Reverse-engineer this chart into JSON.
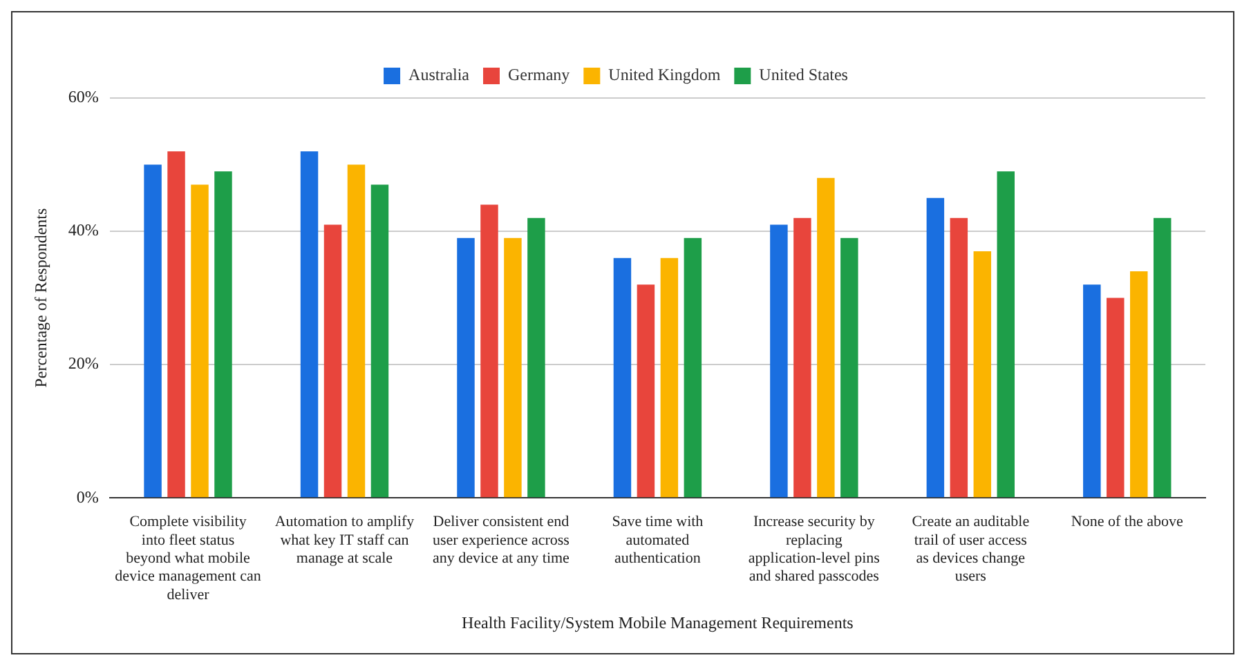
{
  "chart_data": {
    "type": "bar",
    "xlabel": "Health Facility/System Mobile Management Requirements",
    "ylabel": "Percentage of Respondents",
    "categories": [
      "Complete visibility into fleet status beyond what mobile device management can deliver",
      "Automation to amplify what key IT staff can manage at scale",
      "Deliver consistent end user experience across any device at any time",
      "Save time with automated authentication",
      "Increase security by replacing application-level pins and shared passcodes",
      "Create an auditable trail of user access as devices change users",
      "None of the above"
    ],
    "series": [
      {
        "name": "Australia",
        "color": "#1a6fe0",
        "values": [
          50,
          52,
          39,
          36,
          41,
          45,
          32
        ]
      },
      {
        "name": "Germany",
        "color": "#e8453c",
        "values": [
          52,
          41,
          44,
          32,
          42,
          42,
          30
        ]
      },
      {
        "name": "United Kingdom",
        "color": "#fbb400",
        "values": [
          47,
          50,
          39,
          36,
          48,
          37,
          34
        ]
      },
      {
        "name": "United States",
        "color": "#1e9e49",
        "values": [
          49,
          47,
          42,
          39,
          39,
          49,
          42
        ]
      }
    ],
    "ylim": [
      0,
      60
    ],
    "yticks": [
      {
        "value": 0,
        "label": "0%"
      },
      {
        "value": 20,
        "label": "20%"
      },
      {
        "value": 40,
        "label": "40%"
      },
      {
        "value": 60,
        "label": "60%"
      }
    ],
    "grid": "y",
    "legend": "top"
  }
}
